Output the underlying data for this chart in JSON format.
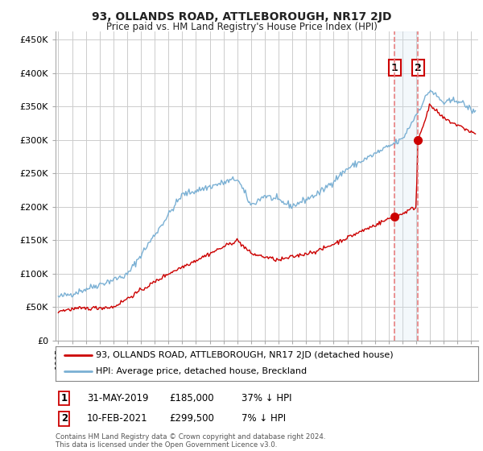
{
  "title": "93, OLLANDS ROAD, ATTLEBOROUGH, NR17 2JD",
  "subtitle": "Price paid vs. HM Land Registry's House Price Index (HPI)",
  "ylabel_ticks": [
    "£0",
    "£50K",
    "£100K",
    "£150K",
    "£200K",
    "£250K",
    "£300K",
    "£350K",
    "£400K",
    "£450K"
  ],
  "ytick_values": [
    0,
    50000,
    100000,
    150000,
    200000,
    250000,
    300000,
    350000,
    400000,
    450000
  ],
  "ylim": [
    0,
    462000
  ],
  "xlim_start": 1994.8,
  "xlim_end": 2025.5,
  "legend_line1": "93, OLLANDS ROAD, ATTLEBOROUGH, NR17 2JD (detached house)",
  "legend_line2": "HPI: Average price, detached house, Breckland",
  "sale1_date": 2019.42,
  "sale1_price": 185000,
  "sale2_date": 2021.12,
  "sale2_price": 299500,
  "footnote": "Contains HM Land Registry data © Crown copyright and database right 2024.\nThis data is licensed under the Open Government Licence v3.0.",
  "table_row1": [
    "1",
    "31-MAY-2019",
    "£185,000",
    "37% ↓ HPI"
  ],
  "table_row2": [
    "2",
    "10-FEB-2021",
    "£299,500",
    "7% ↓ HPI"
  ],
  "line_color_red": "#cc0000",
  "line_color_blue": "#7ab0d4",
  "vline_color": "#e88080",
  "shade_color": "#d0e4f0",
  "grid_color": "#cccccc",
  "bg_color": "#ffffff"
}
